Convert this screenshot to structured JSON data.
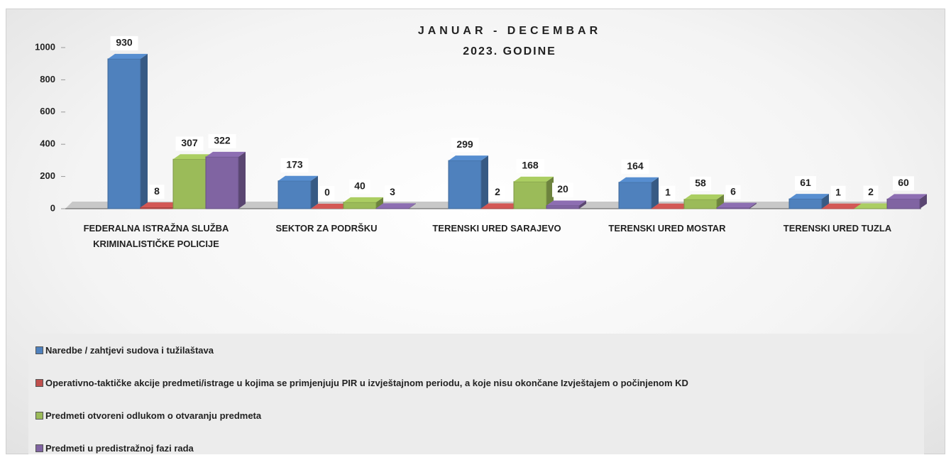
{
  "chart_data": {
    "type": "bar",
    "title": "JANUAR - DECEMBAR",
    "subtitle": "2023. GODINE",
    "categories": [
      "FEDERALNA ISTRAŽNA SLUŽBA KRIMINALISTIČKE POLICIJE",
      "SEKTOR ZA PODRŠKU",
      "TERENSKI URED SARAJEVO",
      "TERENSKI URED MOSTAR",
      "TERENSKI URED TUZLA"
    ],
    "series": [
      {
        "name": "Naredbe / zahtjevi sudova i tužilaštava",
        "color": "#4f81bd",
        "values": [
          930,
          173,
          299,
          164,
          61
        ]
      },
      {
        "name": "Operativno-taktičke akcije predmeti/istrage u kojima se primjenjuju PIR u izvještajnom periodu, a koje nisu okončane Izvještajem o počinjenom KD",
        "color": "#c0504d",
        "values": [
          8,
          0,
          2,
          1,
          1
        ]
      },
      {
        "name": "Predmeti otvoreni odlukom o otvaranju predmeta",
        "color": "#9bbb59",
        "values": [
          307,
          40,
          168,
          58,
          2
        ]
      },
      {
        "name": "Predmeti u predistražnoj fazi rada",
        "color": "#8064a2",
        "values": [
          322,
          3,
          20,
          6,
          60
        ]
      }
    ],
    "ylim": [
      0,
      1000
    ],
    "yticks": [
      0,
      200,
      400,
      600,
      800,
      1000
    ],
    "legend": "bottom"
  }
}
